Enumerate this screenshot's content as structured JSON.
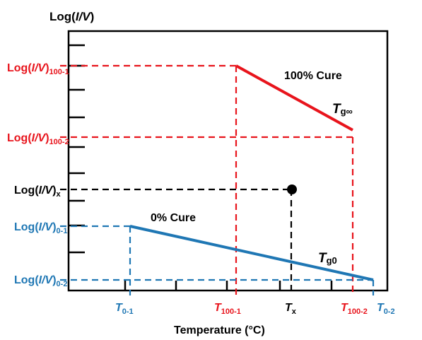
{
  "axis": {
    "y_title_prefix": "Log(",
    "y_title_var": "I/V",
    "y_title_suffix": ")",
    "x_title": "Temperature (°C)"
  },
  "y_labels": [
    {
      "prefix": "Log(",
      "var": "I/V",
      "suffix": ")",
      "sub": "100-1",
      "color": "#e8141c"
    },
    {
      "prefix": "Log(",
      "var": "I/V",
      "suffix": ")",
      "sub": "100-2",
      "color": "#e8141c"
    },
    {
      "prefix": "Log(",
      "var": "I/V",
      "suffix": ")",
      "sub": "x",
      "color": "#000000"
    },
    {
      "prefix": "Log(",
      "var": "I/V",
      "suffix": ")",
      "sub": "0-1",
      "color": "#1f77b4"
    },
    {
      "prefix": "Log(",
      "var": "I/V",
      "suffix": ")",
      "sub": "0-2",
      "color": "#1f77b4"
    }
  ],
  "x_labels": [
    {
      "main": "T",
      "sub": "0-1",
      "color": "#1f77b4"
    },
    {
      "main": "T",
      "sub": "100-1",
      "color": "#e8141c"
    },
    {
      "main": "T",
      "sub": "x",
      "color": "#000000"
    },
    {
      "main": "T",
      "sub": "100-2",
      "color": "#e8141c"
    },
    {
      "main": "T",
      "sub": "0-2",
      "color": "#1f77b4"
    }
  ],
  "annotations": {
    "cure_100": "100% Cure",
    "cure_0": "0% Cure",
    "tg_inf_main": "T",
    "tg_inf_sub": "g∞",
    "tg0_main": "T",
    "tg0_sub": "g0"
  },
  "colors": {
    "red": "#e8141c",
    "blue": "#1f77b4",
    "black": "#000000"
  }
}
